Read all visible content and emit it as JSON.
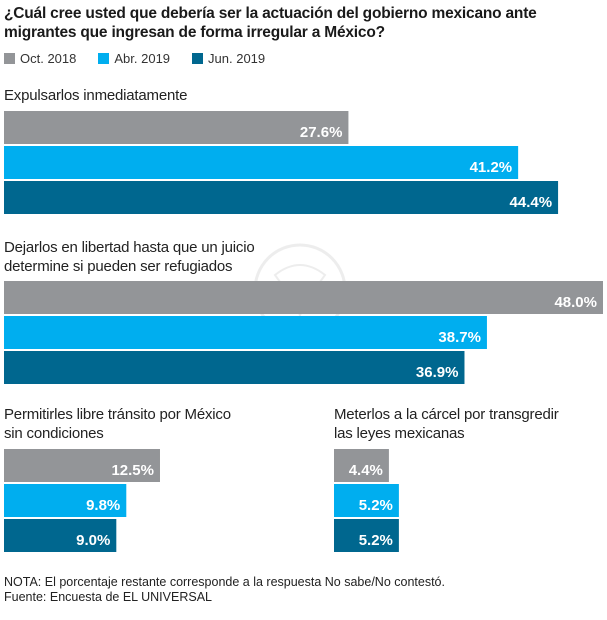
{
  "chart_data": {
    "type": "bar",
    "orientation": "horizontal",
    "title": "¿Cuál cree usted que debería ser la actuación del gobierno mexicano ante migrantes que ingresan de forma irregular a México?",
    "xlabel": "",
    "ylabel": "",
    "unit": "%",
    "xlim": [
      0,
      48
    ],
    "grid": false,
    "legend_position": "top-left",
    "series": [
      {
        "name": "Oct. 2018",
        "color": "#939598"
      },
      {
        "name": "Abr. 2019",
        "color": "#00aeef"
      },
      {
        "name": "Jun. 2019",
        "color": "#00678f"
      }
    ],
    "categories": [
      {
        "label": "Expulsarlos inmediatamente",
        "values": [
          27.6,
          41.2,
          44.4
        ],
        "value_labels": [
          "27.6%",
          "41.2%",
          "44.4%"
        ]
      },
      {
        "label": "Dejarlos en libertad hasta que un juicio determine si pueden ser refugiados",
        "values": [
          48.0,
          38.7,
          36.9
        ],
        "value_labels": [
          "48.0%",
          "38.7%",
          "36.9%"
        ]
      },
      {
        "label": "Permitirles libre tránsito por México sin condiciones",
        "values": [
          12.5,
          9.8,
          9.0
        ],
        "value_labels": [
          "12.5%",
          "9.8%",
          "9.0%"
        ]
      },
      {
        "label": "Meterlos a la cárcel por transgredir las leyes mexicanas",
        "values": [
          4.4,
          5.2,
          5.2
        ],
        "value_labels": [
          "4.4%",
          "5.2%",
          "5.2%"
        ]
      }
    ],
    "notes": [
      "NOTA: El porcentaje restante corresponde a la respuesta No sabe/No contestó.",
      "Fuente: Encuesta de EL UNIVERSAL"
    ]
  },
  "labels": {
    "cat0_line1": "Expulsarlos inmediatamente",
    "cat1_line1": "Dejarlos en libertad hasta que un juicio",
    "cat1_line2": "determine si pueden ser refugiados",
    "cat2_line1": "Permitirles libre tránsito por México",
    "cat2_line2": "sin condiciones",
    "cat3_line1": "Meterlos a la cárcel por transgredir",
    "cat3_line2": "las leyes mexicanas"
  }
}
